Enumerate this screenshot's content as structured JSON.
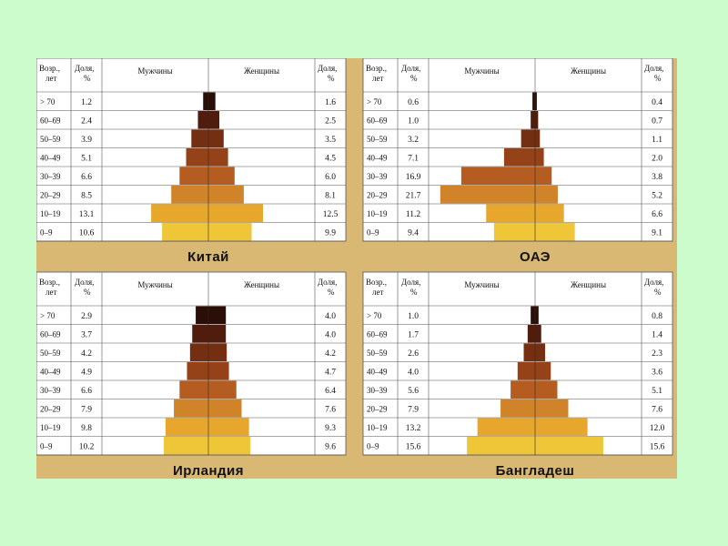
{
  "headers": {
    "age": [
      "Возр.,",
      "лет"
    ],
    "share": [
      "Доля,",
      "%"
    ],
    "men": "Мужчины",
    "women": "Женщины"
  },
  "age_groups": [
    "> 70",
    "60–69",
    "50–59",
    "40–49",
    "30–39",
    "20–29",
    "10–19",
    "0–9"
  ],
  "colors": {
    "board": "#d9b873",
    "grid": "#555555",
    "bars": [
      "#2a0e08",
      "#4f1c0e",
      "#742f12",
      "#954218",
      "#b55c20",
      "#d08328",
      "#e6a72c",
      "#eec637"
    ]
  },
  "chart_data": [
    {
      "type": "bar",
      "title": "Китай",
      "categories": [
        "> 70",
        "60–69",
        "50–59",
        "40–49",
        "30–39",
        "20–29",
        "10–19",
        "0–9"
      ],
      "series": [
        {
          "name": "Мужчины",
          "values": [
            1.2,
            2.4,
            3.9,
            5.1,
            6.6,
            8.5,
            13.1,
            10.6
          ]
        },
        {
          "name": "Женщины",
          "values": [
            1.6,
            2.5,
            3.5,
            4.5,
            6.0,
            8.1,
            12.5,
            9.9
          ]
        }
      ],
      "labels": {
        "men": [
          "1.2",
          "2.4",
          "3.9",
          "5.1",
          "6.6",
          "8.5",
          "13.1",
          "10.6"
        ],
        "women": [
          "1.6",
          "2.5",
          "3.5",
          "4.5",
          "6.0",
          "8.1",
          "12.5",
          "9.9"
        ]
      }
    },
    {
      "type": "bar",
      "title": "ОАЭ",
      "categories": [
        "> 70",
        "60–69",
        "50–59",
        "40–49",
        "30–39",
        "20–29",
        "10–19",
        "0–9"
      ],
      "series": [
        {
          "name": "Мужчины",
          "values": [
            0.6,
            1.0,
            3.2,
            7.1,
            16.9,
            21.7,
            11.2,
            9.4
          ]
        },
        {
          "name": "Женщины",
          "values": [
            0.4,
            0.7,
            1.1,
            2.0,
            3.8,
            5.2,
            6.6,
            9.1
          ]
        }
      ],
      "labels": {
        "men": [
          "0.6",
          "1.0",
          "3.2",
          "7.1",
          "16.9",
          "21.7",
          "11.2",
          "9.4"
        ],
        "women": [
          "0.4",
          "0.7",
          "1.1",
          "2.0",
          "3.8",
          "5.2",
          "6.6",
          "9.1"
        ]
      }
    },
    {
      "type": "bar",
      "title": "Ирландия",
      "categories": [
        "> 70",
        "60–69",
        "50–59",
        "40–49",
        "30–39",
        "20–29",
        "10–19",
        "0–9"
      ],
      "series": [
        {
          "name": "Мужчины",
          "values": [
            2.9,
            3.7,
            4.2,
            4.9,
            6.6,
            7.9,
            9.8,
            10.2
          ]
        },
        {
          "name": "Женщины",
          "values": [
            4.0,
            4.0,
            4.2,
            4.7,
            6.4,
            7.6,
            9.3,
            9.6
          ]
        }
      ],
      "labels": {
        "men": [
          "2.9",
          "3.7",
          "4.2",
          "4.9",
          "6.6",
          "7.9",
          "9.8",
          "10.2"
        ],
        "women": [
          "4.0",
          "4.0",
          "4.2",
          "4.7",
          "6.4",
          "7.6",
          "9.3",
          "9.6"
        ]
      }
    },
    {
      "type": "bar",
      "title": "Бангладеш",
      "categories": [
        "> 70",
        "60–69",
        "50–59",
        "40–49",
        "30–39",
        "20–29",
        "10–19",
        "0–9"
      ],
      "series": [
        {
          "name": "Мужчины",
          "values": [
            1.0,
            1.7,
            2.6,
            4.0,
            5.6,
            7.9,
            13.2,
            15.6
          ]
        },
        {
          "name": "Женщины",
          "values": [
            0.8,
            1.4,
            2.3,
            3.6,
            5.1,
            7.6,
            12.0,
            15.6
          ]
        }
      ],
      "labels": {
        "men": [
          "1.0",
          "1.7",
          "2.6",
          "4.0",
          "5.6",
          "7.9",
          "13.2",
          "15.6"
        ],
        "women": [
          "0.8",
          "1.4",
          "2.3",
          "3.6",
          "5.1",
          "7.6",
          "12.0",
          "15.6"
        ]
      }
    }
  ]
}
